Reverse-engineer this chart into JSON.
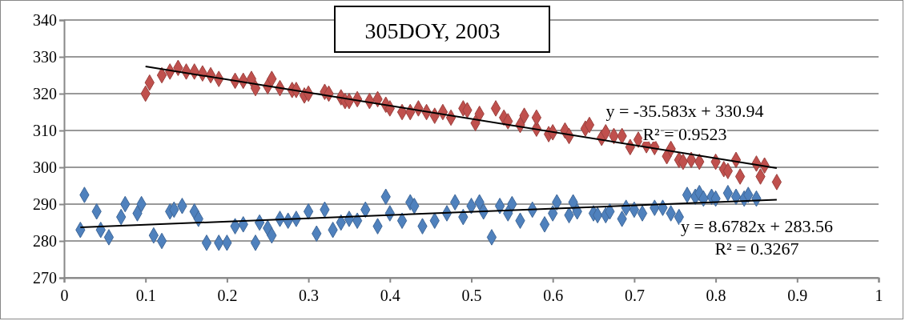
{
  "chart_data": {
    "type": "scatter",
    "title": "305DOY, 2003",
    "marker": "diamond",
    "grid": "y",
    "xlim": [
      0,
      1
    ],
    "xticks": [
      0,
      0.1,
      0.2,
      0.3,
      0.4,
      0.5,
      0.6,
      0.7,
      0.8,
      0.9,
      1
    ],
    "ylim": [
      270,
      340
    ],
    "yticks": [
      270,
      280,
      290,
      300,
      310,
      320,
      330,
      340
    ],
    "annotations": [
      "y = -35.583x + 330.94",
      "R² = 0.9523",
      "y = 8.6782x + 283.56",
      "R² = 0.3267"
    ],
    "series": [
      {
        "color": "#c0504d",
        "x": [
          0.1,
          0.105,
          0.12,
          0.13,
          0.14,
          0.15,
          0.16,
          0.17,
          0.18,
          0.19,
          0.21,
          0.22,
          0.23,
          0.235,
          0.25,
          0.255,
          0.265,
          0.28,
          0.285,
          0.295,
          0.3,
          0.32,
          0.325,
          0.34,
          0.345,
          0.35,
          0.36,
          0.375,
          0.385,
          0.395,
          0.4,
          0.415,
          0.425,
          0.435,
          0.445,
          0.455,
          0.465,
          0.475,
          0.49,
          0.495,
          0.505,
          0.51,
          0.53,
          0.54,
          0.545,
          0.56,
          0.565,
          0.58,
          0.58,
          0.595,
          0.6,
          0.615,
          0.62,
          0.64,
          0.645,
          0.66,
          0.665,
          0.675,
          0.685,
          0.695,
          0.705,
          0.715,
          0.725,
          0.74,
          0.745,
          0.755,
          0.76,
          0.77,
          0.78,
          0.8,
          0.81,
          0.815,
          0.825,
          0.83,
          0.85,
          0.855,
          0.86,
          0.875
        ],
        "values": [
          320,
          323,
          325,
          326,
          327,
          326,
          326,
          325.5,
          325,
          324,
          323.5,
          323.5,
          324,
          321.5,
          322,
          324,
          321.5,
          321,
          321,
          319.5,
          320,
          320.5,
          320,
          319,
          318,
          318,
          318.5,
          318,
          318.5,
          317,
          316,
          315,
          315,
          316,
          315,
          314,
          315,
          313.5,
          316,
          315.5,
          312,
          314.5,
          316,
          313.5,
          312.5,
          311.5,
          314,
          310.5,
          313.5,
          309,
          309.5,
          310,
          308.5,
          310.5,
          311.5,
          308,
          309.5,
          308.5,
          308.5,
          305.5,
          307.5,
          306,
          305.5,
          303,
          305,
          302,
          301.5,
          302,
          301.5,
          301.5,
          299.5,
          299,
          302,
          297.5,
          301,
          297.5,
          300.5,
          296
        ]
      },
      {
        "color": "#4f81bd",
        "x": [
          0.02,
          0.025,
          0.04,
          0.045,
          0.055,
          0.07,
          0.075,
          0.09,
          0.095,
          0.11,
          0.12,
          0.13,
          0.135,
          0.145,
          0.16,
          0.165,
          0.175,
          0.19,
          0.2,
          0.21,
          0.22,
          0.235,
          0.24,
          0.25,
          0.255,
          0.265,
          0.275,
          0.285,
          0.3,
          0.31,
          0.32,
          0.33,
          0.34,
          0.35,
          0.36,
          0.37,
          0.385,
          0.395,
          0.4,
          0.415,
          0.425,
          0.43,
          0.44,
          0.455,
          0.47,
          0.48,
          0.49,
          0.5,
          0.51,
          0.515,
          0.525,
          0.535,
          0.545,
          0.55,
          0.56,
          0.575,
          0.59,
          0.6,
          0.605,
          0.62,
          0.625,
          0.63,
          0.65,
          0.655,
          0.665,
          0.67,
          0.685,
          0.69,
          0.7,
          0.71,
          0.725,
          0.735,
          0.745,
          0.755,
          0.765,
          0.775,
          0.78,
          0.785,
          0.795,
          0.8,
          0.815,
          0.825,
          0.835,
          0.84,
          0.85
        ],
        "values": [
          283,
          292.5,
          288,
          283,
          281,
          286.5,
          290,
          287.5,
          290,
          281.5,
          280,
          288,
          288.5,
          289.5,
          288,
          286,
          279.5,
          279.5,
          279.5,
          284,
          284.5,
          279.5,
          285,
          283.5,
          281.5,
          286,
          285.5,
          286,
          288,
          282,
          288.5,
          283,
          285,
          286,
          285.5,
          288.5,
          284,
          292,
          287.5,
          285.5,
          290.5,
          289.5,
          284,
          285.5,
          287.5,
          290.5,
          286.5,
          289.5,
          290.5,
          288,
          281,
          289.5,
          287.5,
          290,
          285.5,
          288.5,
          284.5,
          287.5,
          290.5,
          287,
          290.5,
          288,
          287.5,
          287,
          287,
          288,
          286,
          289,
          288.5,
          287.5,
          289,
          289,
          287.5,
          286.5,
          292.5,
          292,
          293,
          291.5,
          292,
          291.5,
          293,
          292,
          291.5,
          292.5,
          291.5
        ]
      },
      {
        "type": "line",
        "color": "#000000",
        "marker": "none",
        "x": [
          0.1,
          0.875
        ],
        "values": [
          327.4,
          299.8
        ]
      },
      {
        "type": "line",
        "color": "#000000",
        "marker": "none",
        "x": [
          0.02,
          0.875
        ],
        "values": [
          283.7,
          291.2
        ]
      }
    ]
  }
}
